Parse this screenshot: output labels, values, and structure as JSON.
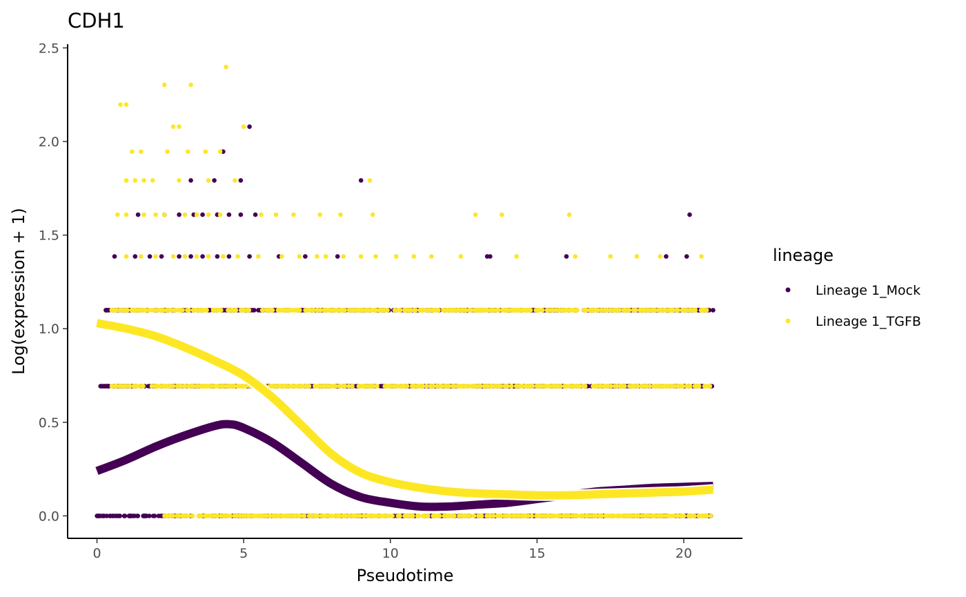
{
  "chart_data": {
    "type": "scatter",
    "title": "CDH1",
    "xlabel": "Pseudotime",
    "ylabel": "Log(expression + 1)",
    "xlim": [
      -1,
      22
    ],
    "ylim": [
      -0.12,
      2.52
    ],
    "x_ticks": [
      0,
      5,
      10,
      15,
      20
    ],
    "y_ticks": [
      0.0,
      0.5,
      1.0,
      1.5,
      2.0,
      2.5
    ],
    "x_tick_labels": [
      "0",
      "5",
      "10",
      "15",
      "20"
    ],
    "y_tick_labels": [
      "0.0",
      "0.5",
      "1.0",
      "1.5",
      "2.0",
      "2.5"
    ],
    "grid": false,
    "legend": {
      "title": "lineage",
      "placement": "right",
      "entries": [
        {
          "label": "Lineage 1_Mock",
          "color": "#440154"
        },
        {
          "label": "Lineage 1_TGFB",
          "color": "#FDE725"
        }
      ]
    },
    "expression_levels": [
      0.0,
      0.693,
      1.099,
      1.386,
      1.609,
      1.792,
      1.946,
      2.079,
      2.197,
      2.303,
      2.398
    ],
    "series": [
      {
        "name": "Lineage 1_Mock",
        "color": "#440154",
        "bands": [
          {
            "y": 0.0,
            "x_range": [
              0.0,
              21.0
            ]
          },
          {
            "y": 0.693,
            "x_range": [
              0.1,
              21.0
            ]
          },
          {
            "y": 1.099,
            "x_range": [
              0.3,
              21.0
            ]
          }
        ],
        "points": [
          [
            0.6,
            1.386
          ],
          [
            1.3,
            1.386
          ],
          [
            1.8,
            1.386
          ],
          [
            2.2,
            1.386
          ],
          [
            2.8,
            1.386
          ],
          [
            3.2,
            1.386
          ],
          [
            3.6,
            1.386
          ],
          [
            4.1,
            1.386
          ],
          [
            4.5,
            1.386
          ],
          [
            5.2,
            1.386
          ],
          [
            6.2,
            1.386
          ],
          [
            7.1,
            1.386
          ],
          [
            8.2,
            1.386
          ],
          [
            13.3,
            1.386
          ],
          [
            13.4,
            1.386
          ],
          [
            16.0,
            1.386
          ],
          [
            19.4,
            1.386
          ],
          [
            20.1,
            1.386
          ],
          [
            1.4,
            1.609
          ],
          [
            2.3,
            1.609
          ],
          [
            2.8,
            1.609
          ],
          [
            3.3,
            1.609
          ],
          [
            3.6,
            1.609
          ],
          [
            4.1,
            1.609
          ],
          [
            4.5,
            1.609
          ],
          [
            4.9,
            1.609
          ],
          [
            5.4,
            1.609
          ],
          [
            20.2,
            1.609
          ],
          [
            3.2,
            1.792
          ],
          [
            4.0,
            1.792
          ],
          [
            4.9,
            1.792
          ],
          [
            9.0,
            1.792
          ],
          [
            4.3,
            1.946
          ],
          [
            5.2,
            2.079
          ]
        ]
      },
      {
        "name": "Lineage 1_TGFB",
        "color": "#FDE725",
        "bands": [
          {
            "y": 0.0,
            "x_range": [
              2.3,
              21.0
            ]
          },
          {
            "y": 0.693,
            "x_range": [
              0.5,
              21.0
            ]
          },
          {
            "y": 1.099,
            "x_range": [
              0.5,
              20.8
            ]
          }
        ],
        "points": [
          [
            1.0,
            1.386
          ],
          [
            1.5,
            1.386
          ],
          [
            2.0,
            1.386
          ],
          [
            2.6,
            1.386
          ],
          [
            3.0,
            1.386
          ],
          [
            3.4,
            1.386
          ],
          [
            3.8,
            1.386
          ],
          [
            4.3,
            1.386
          ],
          [
            4.8,
            1.386
          ],
          [
            5.5,
            1.386
          ],
          [
            6.3,
            1.386
          ],
          [
            6.9,
            1.386
          ],
          [
            7.5,
            1.386
          ],
          [
            7.8,
            1.386
          ],
          [
            8.4,
            1.386
          ],
          [
            9.0,
            1.386
          ],
          [
            9.5,
            1.386
          ],
          [
            10.2,
            1.386
          ],
          [
            10.8,
            1.386
          ],
          [
            11.4,
            1.386
          ],
          [
            12.4,
            1.386
          ],
          [
            14.3,
            1.386
          ],
          [
            16.3,
            1.386
          ],
          [
            17.5,
            1.386
          ],
          [
            18.4,
            1.386
          ],
          [
            19.2,
            1.386
          ],
          [
            20.6,
            1.386
          ],
          [
            0.7,
            1.609
          ],
          [
            1.0,
            1.609
          ],
          [
            1.6,
            1.609
          ],
          [
            2.0,
            1.609
          ],
          [
            2.3,
            1.609
          ],
          [
            3.0,
            1.609
          ],
          [
            3.4,
            1.609
          ],
          [
            3.8,
            1.609
          ],
          [
            4.2,
            1.609
          ],
          [
            5.6,
            1.609
          ],
          [
            6.1,
            1.609
          ],
          [
            6.7,
            1.609
          ],
          [
            7.6,
            1.609
          ],
          [
            8.3,
            1.609
          ],
          [
            9.4,
            1.609
          ],
          [
            12.9,
            1.609
          ],
          [
            13.8,
            1.609
          ],
          [
            16.1,
            1.609
          ],
          [
            1.0,
            1.792
          ],
          [
            1.3,
            1.792
          ],
          [
            1.6,
            1.792
          ],
          [
            1.9,
            1.792
          ],
          [
            2.8,
            1.792
          ],
          [
            3.8,
            1.792
          ],
          [
            4.7,
            1.792
          ],
          [
            9.3,
            1.792
          ],
          [
            1.2,
            1.946
          ],
          [
            1.5,
            1.946
          ],
          [
            2.4,
            1.946
          ],
          [
            3.1,
            1.946
          ],
          [
            3.7,
            1.946
          ],
          [
            4.2,
            1.946
          ],
          [
            2.6,
            2.079
          ],
          [
            2.8,
            2.079
          ],
          [
            5.0,
            2.079
          ],
          [
            0.8,
            2.197
          ],
          [
            1.0,
            2.197
          ],
          [
            2.3,
            2.303
          ],
          [
            3.2,
            2.303
          ],
          [
            4.4,
            2.398
          ]
        ]
      }
    ],
    "smooth_curves": [
      {
        "name": "Lineage 1_Mock",
        "color": "#440154",
        "x": [
          0,
          1,
          2,
          3,
          4,
          4.5,
          5,
          6,
          7,
          8,
          9,
          10,
          11,
          12,
          13,
          14,
          15,
          16,
          17,
          18,
          19,
          20,
          21
        ],
        "y": [
          0.24,
          0.3,
          0.37,
          0.43,
          0.48,
          0.49,
          0.47,
          0.39,
          0.28,
          0.17,
          0.1,
          0.07,
          0.05,
          0.05,
          0.06,
          0.07,
          0.09,
          0.11,
          0.13,
          0.14,
          0.15,
          0.155,
          0.16
        ]
      },
      {
        "name": "Lineage 1_TGFB",
        "color": "#FDE725",
        "x": [
          0,
          1,
          2,
          3,
          4,
          5,
          6,
          7,
          8,
          9,
          10,
          11,
          12,
          13,
          14,
          15,
          16,
          17,
          18,
          19,
          20,
          21
        ],
        "y": [
          1.03,
          1.0,
          0.96,
          0.9,
          0.83,
          0.75,
          0.63,
          0.48,
          0.33,
          0.23,
          0.18,
          0.15,
          0.13,
          0.12,
          0.115,
          0.11,
          0.11,
          0.115,
          0.12,
          0.125,
          0.13,
          0.14
        ]
      }
    ]
  }
}
